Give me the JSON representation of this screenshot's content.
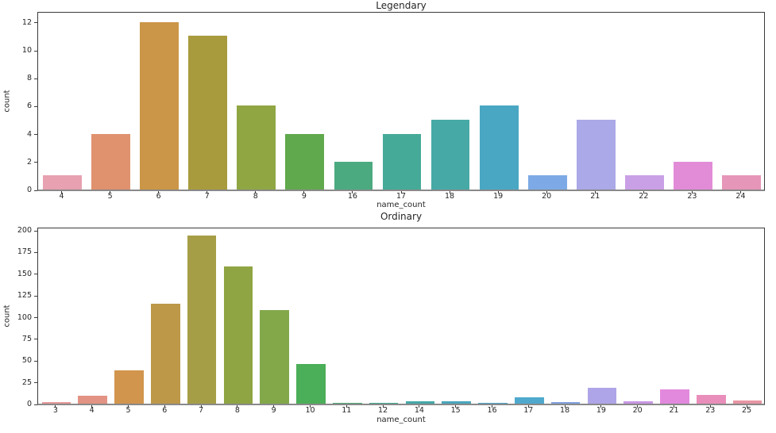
{
  "figure": {
    "background": "#ffffff",
    "text_color": "#262626",
    "spine_color": "#3b3b3b",
    "baseline_color": "#898989"
  },
  "chart_data": [
    {
      "type": "bar",
      "title": "Legendary",
      "xlabel": "name_count",
      "ylabel": "count",
      "categories": [
        "4",
        "5",
        "6",
        "7",
        "8",
        "9",
        "16",
        "17",
        "18",
        "19",
        "20",
        "21",
        "22",
        "23",
        "24"
      ],
      "values": [
        1,
        4,
        12,
        11,
        6,
        4,
        2,
        4,
        5,
        6,
        1,
        5,
        1,
        2,
        1
      ],
      "colors": [
        "#e7a1b1",
        "#e0926e",
        "#cb9648",
        "#a89b3e",
        "#8fa643",
        "#60a94c",
        "#4caa81",
        "#46aa99",
        "#47a9a6",
        "#4aa7c4",
        "#7daae6",
        "#aba9e7",
        "#c9a0e6",
        "#e28cd8",
        "#e696b8"
      ],
      "yticks": [
        0,
        2,
        4,
        6,
        8,
        10,
        12
      ],
      "ylim": [
        0,
        12.79
      ],
      "bar_rel_width": 0.8,
      "grid": false,
      "legend": null
    },
    {
      "type": "bar",
      "title": "Ordinary",
      "xlabel": "name_count",
      "ylabel": "count",
      "categories": [
        "3",
        "4",
        "5",
        "6",
        "7",
        "8",
        "9",
        "10",
        "11",
        "12",
        "14",
        "15",
        "16",
        "17",
        "18",
        "19",
        "20",
        "21",
        "23",
        "25"
      ],
      "values": [
        2,
        9,
        38,
        115,
        194,
        158,
        108,
        46,
        1,
        1,
        3,
        3,
        1,
        7,
        2,
        18,
        3,
        16,
        10,
        4
      ],
      "colors": [
        "#e89a9b",
        "#e29384",
        "#d2954e",
        "#bd9848",
        "#a69e46",
        "#8fa442",
        "#82a84a",
        "#4bae58",
        "#52ab78",
        "#45aa92",
        "#45a8a9",
        "#49a6bc",
        "#4aa5c6",
        "#4fa9cd",
        "#81a2e1",
        "#aea5e8",
        "#c998e5",
        "#e289de",
        "#e98eba",
        "#e795a3"
      ],
      "yticks": [
        0,
        25,
        50,
        75,
        100,
        125,
        150,
        175,
        200
      ],
      "ylim": [
        0,
        203.7
      ],
      "bar_rel_width": 0.8,
      "grid": false,
      "legend": null
    }
  ]
}
